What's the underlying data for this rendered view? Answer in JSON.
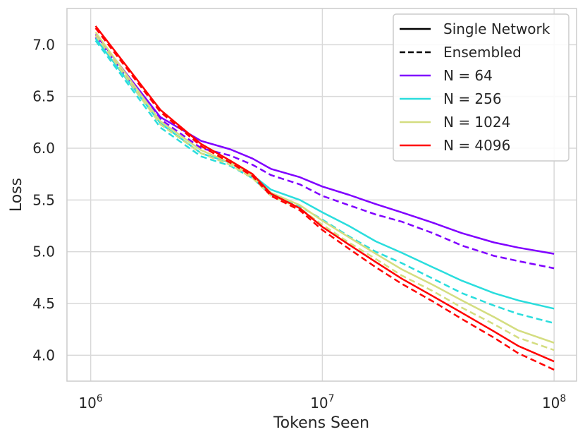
{
  "chart_data": {
    "type": "line",
    "xlabel": "Tokens Seen",
    "ylabel": "Loss",
    "xscale": "log",
    "xlim": [
      790000,
      125000000
    ],
    "ylim": [
      3.75,
      7.35
    ],
    "grid": true,
    "legend_position": "top-right",
    "x_ticks": [
      {
        "value": 1000000,
        "base": "10",
        "exp": "6"
      },
      {
        "value": 10000000,
        "base": "10",
        "exp": "7"
      },
      {
        "value": 100000000,
        "base": "10",
        "exp": "8"
      }
    ],
    "y_ticks": [
      {
        "value": 4.0,
        "label": "4.0"
      },
      {
        "value": 4.5,
        "label": "4.5"
      },
      {
        "value": 5.0,
        "label": "5.0"
      },
      {
        "value": 5.5,
        "label": "5.5"
      },
      {
        "value": 6.0,
        "label": "6.0"
      },
      {
        "value": 6.5,
        "label": "6.5"
      },
      {
        "value": 7.0,
        "label": "7.0"
      }
    ],
    "legend": [
      {
        "label": "Single Network",
        "style": "solid",
        "color": "#000000"
      },
      {
        "label": "Ensembled",
        "style": "dashed",
        "color": "#000000"
      },
      {
        "label": "N = 64",
        "style": "solid",
        "color": "#8000ff"
      },
      {
        "label": "N = 256",
        "style": "solid",
        "color": "#2adddd"
      },
      {
        "label": "N = 1024",
        "style": "solid",
        "color": "#d4dd80"
      },
      {
        "label": "N = 4096",
        "style": "solid",
        "color": "#ff0000"
      }
    ],
    "x": [
      1050000,
      2000000,
      3000000,
      4000000,
      5000000,
      6000000,
      8000000,
      10000000,
      13000000,
      17000000,
      22000000,
      30000000,
      40000000,
      55000000,
      70000000,
      100000000
    ],
    "series": [
      {
        "name": "N = 64",
        "style": "solid",
        "color": "#8000ff",
        "values": [
          7.1,
          6.3,
          6.07,
          5.99,
          5.9,
          5.8,
          5.72,
          5.63,
          5.55,
          5.46,
          5.38,
          5.28,
          5.18,
          5.09,
          5.04,
          4.98
        ]
      },
      {
        "name": "N = 64",
        "style": "dashed",
        "color": "#8000ff",
        "values": [
          7.07,
          6.28,
          6.0,
          5.93,
          5.84,
          5.74,
          5.65,
          5.54,
          5.45,
          5.36,
          5.29,
          5.18,
          5.06,
          4.96,
          4.91,
          4.84
        ]
      },
      {
        "name": "N = 256",
        "style": "solid",
        "color": "#2adddd",
        "values": [
          7.06,
          6.24,
          5.95,
          5.86,
          5.74,
          5.6,
          5.5,
          5.38,
          5.25,
          5.1,
          4.99,
          4.85,
          4.72,
          4.6,
          4.53,
          4.45
        ]
      },
      {
        "name": "N = 256",
        "style": "dashed",
        "color": "#2adddd",
        "values": [
          7.04,
          6.2,
          5.92,
          5.83,
          5.71,
          5.55,
          5.44,
          5.31,
          5.15,
          5.0,
          4.89,
          4.74,
          4.6,
          4.48,
          4.4,
          4.31
        ]
      },
      {
        "name": "N = 1024",
        "style": "solid",
        "color": "#d4dd80",
        "values": [
          7.12,
          6.26,
          5.98,
          5.86,
          5.73,
          5.57,
          5.45,
          5.3,
          5.14,
          4.98,
          4.83,
          4.68,
          4.53,
          4.37,
          4.24,
          4.12
        ]
      },
      {
        "name": "N = 1024",
        "style": "dashed",
        "color": "#d4dd80",
        "values": [
          7.09,
          6.23,
          5.95,
          5.84,
          5.71,
          5.54,
          5.42,
          5.26,
          5.09,
          4.93,
          4.77,
          4.62,
          4.46,
          4.3,
          4.17,
          4.05
        ]
      },
      {
        "name": "N = 4096",
        "style": "solid",
        "color": "#ff0000",
        "values": [
          7.18,
          6.37,
          6.04,
          5.88,
          5.75,
          5.56,
          5.42,
          5.24,
          5.07,
          4.9,
          4.74,
          4.57,
          4.41,
          4.23,
          4.09,
          3.94
        ]
      },
      {
        "name": "N = 4096",
        "style": "dashed",
        "color": "#ff0000",
        "values": [
          7.16,
          6.35,
          6.02,
          5.86,
          5.73,
          5.54,
          5.4,
          5.21,
          5.03,
          4.85,
          4.69,
          4.52,
          4.35,
          4.17,
          4.02,
          3.86
        ]
      }
    ]
  }
}
